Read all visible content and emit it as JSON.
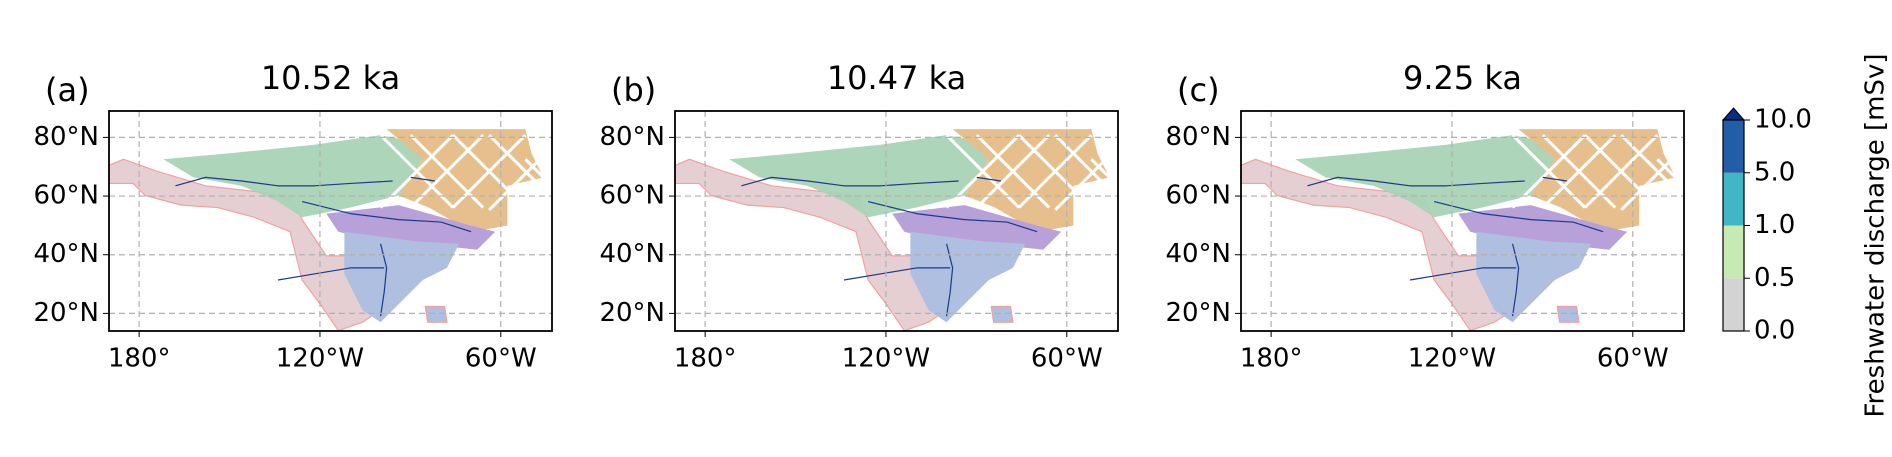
{
  "panels": [
    {
      "label": "(a)",
      "title": "10.52 ka"
    },
    {
      "label": "(b)",
      "title": "10.47 ka"
    },
    {
      "label": "(c)",
      "title": "9.25 ka"
    }
  ],
  "extent": {
    "lon": [
      -190,
      -43
    ],
    "lat": [
      14,
      89
    ]
  },
  "lat_ticks": [
    {
      "value": 80,
      "label": "80°N"
    },
    {
      "value": 60,
      "label": "60°N"
    },
    {
      "value": 40,
      "label": "40°N"
    },
    {
      "value": 20,
      "label": "20°N"
    }
  ],
  "lon_ticks": [
    {
      "value": -180,
      "label": "180°"
    },
    {
      "value": -120,
      "label": "120°W"
    },
    {
      "value": -60,
      "label": "60°W"
    }
  ],
  "colorbar": {
    "label": "Freshwater discharge [mSv]",
    "ticks": [
      {
        "value": 0,
        "label": "0.0"
      },
      {
        "value": 0.5,
        "label": "0.5"
      },
      {
        "value": 1,
        "label": "1.0"
      },
      {
        "value": 5,
        "label": "5.0"
      },
      {
        "value": 10,
        "label": "10.0"
      }
    ],
    "colors": [
      "#d3d3d3",
      "#c7e9b4",
      "#41b6c4",
      "#225ea8"
    ],
    "extend_color": "#0c2c84"
  }
}
